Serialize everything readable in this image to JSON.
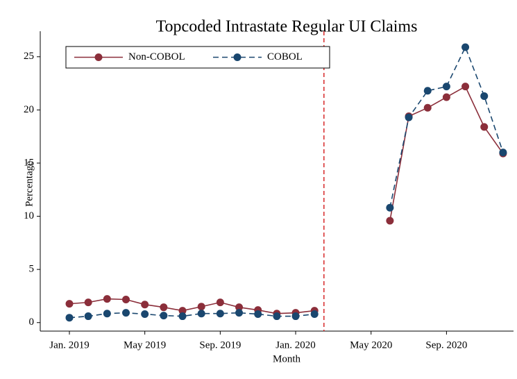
{
  "chart_data": {
    "type": "line",
    "title": "Topcoded Intrastate Regular UI Claims",
    "x_label": "Month",
    "y_label": "Percentage",
    "x": [
      "2019-01",
      "2019-02",
      "2019-03",
      "2019-04",
      "2019-05",
      "2019-06",
      "2019-07",
      "2019-08",
      "2019-09",
      "2019-10",
      "2019-11",
      "2019-12",
      "2020-01",
      "2020-02",
      "2020-03",
      "2020-04",
      "2020-05",
      "2020-06",
      "2020-07",
      "2020-08",
      "2020-09",
      "2020-10",
      "2020-11",
      "2020-12"
    ],
    "series": [
      {
        "name": "Non-COBOL",
        "color": "#8b2e3a",
        "dash": false,
        "values": [
          1.77,
          1.9,
          2.23,
          2.17,
          1.7,
          1.44,
          1.12,
          1.5,
          1.9,
          1.44,
          1.18,
          0.85,
          0.92,
          1.12,
          null,
          null,
          null,
          9.58,
          19.4,
          20.2,
          21.2,
          22.2,
          18.4,
          15.9
        ]
      },
      {
        "name": "COBOL",
        "color": "#1a476f",
        "dash": true,
        "values": [
          0.46,
          0.6,
          0.85,
          0.92,
          0.8,
          0.66,
          0.6,
          0.85,
          0.85,
          0.92,
          0.8,
          0.6,
          0.6,
          0.8,
          null,
          null,
          null,
          10.8,
          19.3,
          21.8,
          22.2,
          25.9,
          21.3,
          16.0
        ]
      }
    ],
    "vline": {
      "x": "2020-02",
      "color": "#d62728"
    },
    "xticks": [
      {
        "value": "2019-01",
        "label": "Jan. 2019"
      },
      {
        "value": "2019-05",
        "label": "May 2019"
      },
      {
        "value": "2019-09",
        "label": "Sep. 2019"
      },
      {
        "value": "2020-01",
        "label": "Jan. 2020"
      },
      {
        "value": "2020-05",
        "label": "May 2020"
      },
      {
        "value": "2020-09",
        "label": "Sep. 2020"
      }
    ],
    "ylim": [
      -0.8,
      27.4
    ],
    "yticks": [
      0,
      5,
      10,
      15,
      20,
      25
    ],
    "grid": false,
    "legend": "top-left"
  }
}
